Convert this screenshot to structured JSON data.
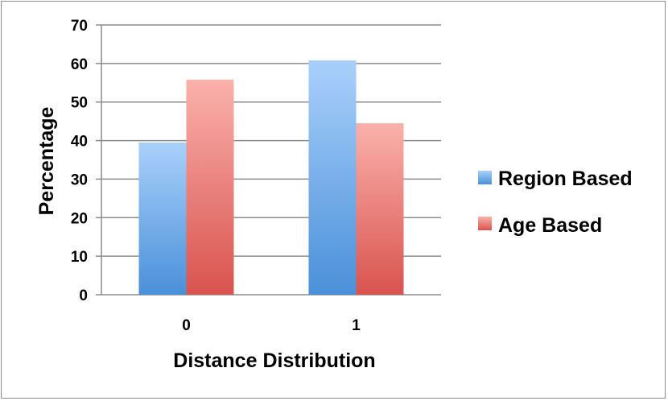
{
  "chart_data": {
    "type": "bar",
    "categories": [
      "0",
      "1"
    ],
    "series": [
      {
        "name": "Region Based",
        "values": [
          39.5,
          60.8
        ],
        "color": "#4a90d9"
      },
      {
        "name": "Age Based",
        "values": [
          55.8,
          44.5
        ],
        "color": "#d9534f"
      }
    ],
    "xlabel": "Distance Distribution",
    "ylabel": "Percentage",
    "ylim": [
      0,
      70
    ],
    "yticks": [
      "0",
      "10",
      "20",
      "30",
      "40",
      "50",
      "60",
      "70"
    ],
    "grid": true,
    "legend_position": "right"
  }
}
